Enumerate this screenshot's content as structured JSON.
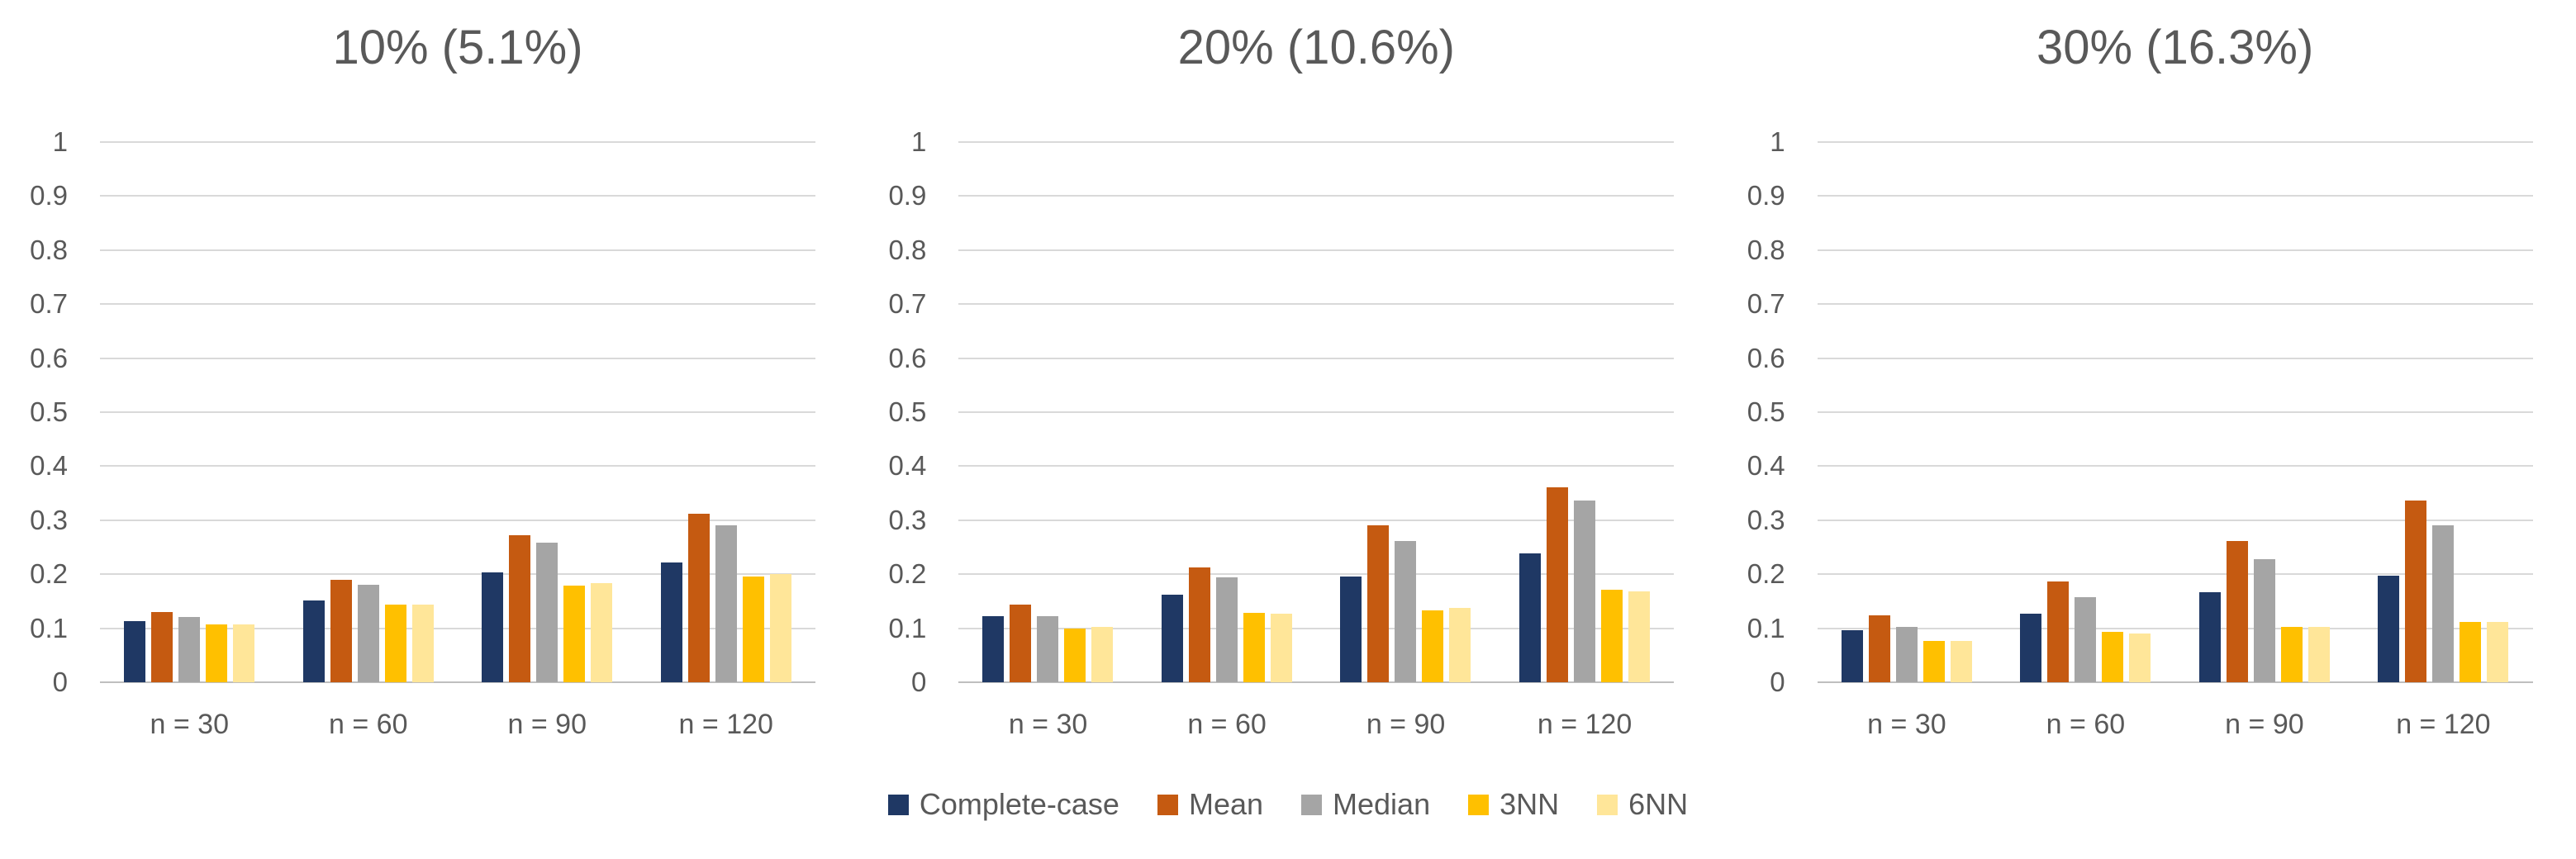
{
  "figure": {
    "background": "#FFFFFF",
    "text_color": "#595959",
    "gridline_color": "#D9D9D9",
    "axis_line_color": "#BFBFBF"
  },
  "legend": {
    "position": "bottom-center",
    "items": [
      {
        "label": "Complete-case",
        "color": "#1F3864"
      },
      {
        "label": "Mean",
        "color": "#C55A11"
      },
      {
        "label": "Median",
        "color": "#A5A5A5"
      },
      {
        "label": "3NN",
        "color": "#FFC000"
      },
      {
        "label": "6NN",
        "color": "#FFE699"
      }
    ]
  },
  "chart_data": [
    {
      "type": "bar",
      "title": "10% (5.1%)",
      "categories": [
        "n = 30",
        "n = 60",
        "n = 90",
        "n = 120"
      ],
      "yticks": [
        "0",
        "0.1",
        "0.2",
        "0.3",
        "0.4",
        "0.5",
        "0.6",
        "0.7",
        "0.8",
        "0.9",
        "1"
      ],
      "ylim": [
        0,
        1
      ],
      "grid": true,
      "legend_position": "none",
      "series": [
        {
          "name": "Complete-case",
          "color": "#1F3864",
          "values": [
            0.113,
            0.151,
            0.204,
            0.222
          ]
        },
        {
          "name": "Mean",
          "color": "#C55A11",
          "values": [
            0.13,
            0.19,
            0.272,
            0.312
          ]
        },
        {
          "name": "Median",
          "color": "#A5A5A5",
          "values": [
            0.121,
            0.18,
            0.259,
            0.291
          ]
        },
        {
          "name": "3NN",
          "color": "#FFC000",
          "values": [
            0.107,
            0.143,
            0.179,
            0.196
          ]
        },
        {
          "name": "6NN",
          "color": "#FFE699",
          "values": [
            0.107,
            0.143,
            0.184,
            0.2
          ]
        }
      ]
    },
    {
      "type": "bar",
      "title": "20% (10.6%)",
      "categories": [
        "n = 30",
        "n = 60",
        "n = 90",
        "n = 120"
      ],
      "yticks": [
        "0",
        "0.1",
        "0.2",
        "0.3",
        "0.4",
        "0.5",
        "0.6",
        "0.7",
        "0.8",
        "0.9",
        "1"
      ],
      "ylim": [
        0,
        1
      ],
      "grid": true,
      "legend_position": "none",
      "series": [
        {
          "name": "Complete-case",
          "color": "#1F3864",
          "values": [
            0.122,
            0.162,
            0.196,
            0.238
          ]
        },
        {
          "name": "Mean",
          "color": "#C55A11",
          "values": [
            0.144,
            0.213,
            0.291,
            0.361
          ]
        },
        {
          "name": "Median",
          "color": "#A5A5A5",
          "values": [
            0.123,
            0.194,
            0.261,
            0.337
          ]
        },
        {
          "name": "3NN",
          "color": "#FFC000",
          "values": [
            0.1,
            0.128,
            0.133,
            0.171
          ]
        },
        {
          "name": "6NN",
          "color": "#FFE699",
          "values": [
            0.102,
            0.127,
            0.137,
            0.168
          ]
        }
      ]
    },
    {
      "type": "bar",
      "title": "30% (16.3%)",
      "categories": [
        "n = 30",
        "n = 60",
        "n = 90",
        "n = 120"
      ],
      "yticks": [
        "0",
        "0.1",
        "0.2",
        "0.3",
        "0.4",
        "0.5",
        "0.6",
        "0.7",
        "0.8",
        "0.9",
        "1"
      ],
      "ylim": [
        0,
        1
      ],
      "grid": true,
      "legend_position": "none",
      "series": [
        {
          "name": "Complete-case",
          "color": "#1F3864",
          "values": [
            0.097,
            0.127,
            0.167,
            0.197
          ]
        },
        {
          "name": "Mean",
          "color": "#C55A11",
          "values": [
            0.124,
            0.186,
            0.262,
            0.336
          ]
        },
        {
          "name": "Median",
          "color": "#A5A5A5",
          "values": [
            0.103,
            0.158,
            0.228,
            0.291
          ]
        },
        {
          "name": "3NN",
          "color": "#FFC000",
          "values": [
            0.076,
            0.093,
            0.103,
            0.112
          ]
        },
        {
          "name": "6NN",
          "color": "#FFE699",
          "values": [
            0.077,
            0.091,
            0.102,
            0.112
          ]
        }
      ]
    }
  ]
}
